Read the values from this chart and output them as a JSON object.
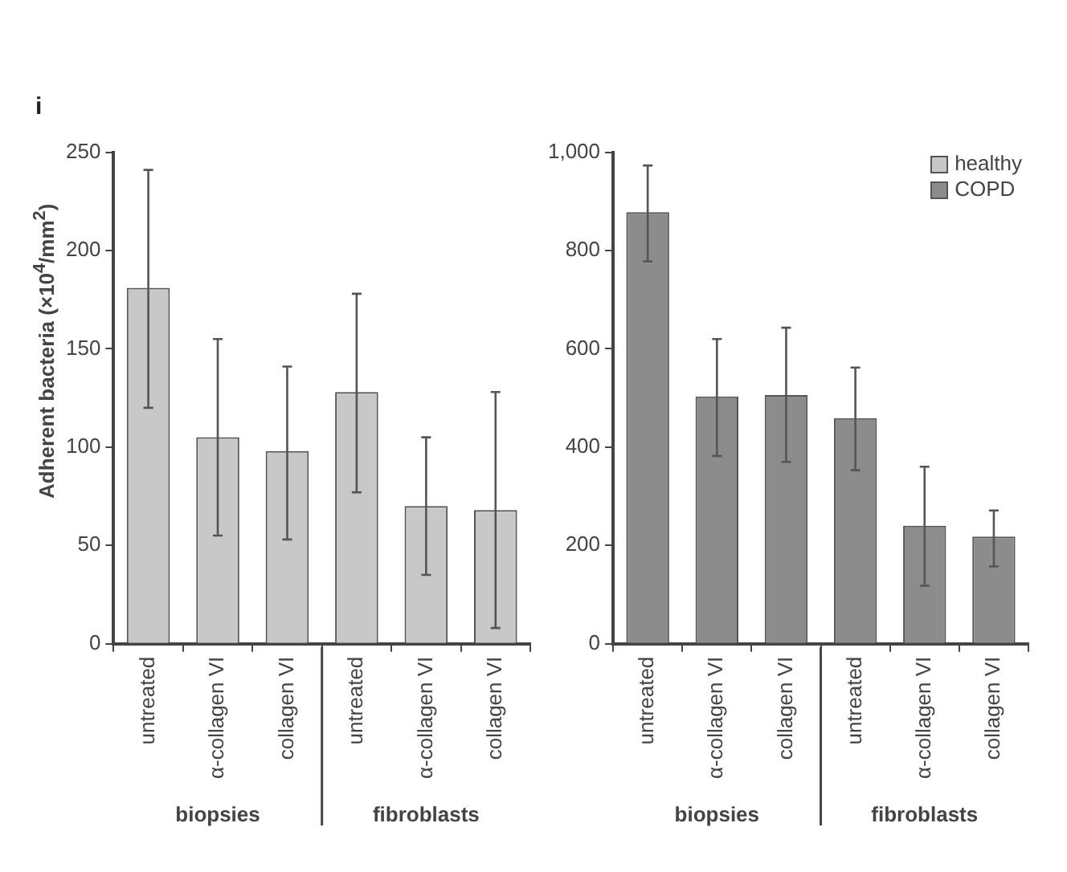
{
  "chart_data": [
    {
      "type": "bar",
      "ylabel": "Adherent bacteria (×10$^{4}$/mm$^{2}$)",
      "categories": [
        "untreated",
        "α-collagen VI",
        "collagen VI",
        "untreated",
        "α-collagen VI",
        "collagen VI"
      ],
      "series": [
        {
          "name": "healthy",
          "color": "#c8c8c8",
          "values": [
            181,
            105,
            98,
            128,
            70,
            68
          ],
          "errors": [
            [
              120,
              241
            ],
            [
              55,
              155
            ],
            [
              53,
              141
            ],
            [
              77,
              178
            ],
            [
              35,
              105
            ],
            [
              8,
              128
            ]
          ]
        }
      ],
      "ylim": [
        0,
        250
      ],
      "yticks": [
        0,
        50,
        100,
        150,
        200,
        250
      ],
      "grid": false,
      "legend": false,
      "annotations": [
        "i",
        "biopsies",
        "fibroblasts"
      ]
    },
    {
      "type": "bar",
      "categories": [
        "untreated",
        "α-collagen VI",
        "collagen VI",
        "untreated",
        "α-collagen VI",
        "collagen VI"
      ],
      "series": [
        {
          "name": "COPD",
          "color": "#8c8c8c",
          "values": [
            878,
            503,
            506,
            459,
            240,
            218
          ],
          "errors": [
            [
              778,
              973
            ],
            [
              382,
              620
            ],
            [
              370,
              643
            ],
            [
              353,
              562
            ],
            [
              118,
              360
            ],
            [
              157,
              271
            ]
          ]
        }
      ],
      "ylim": [
        0,
        1000
      ],
      "yticks": [
        0,
        200,
        400,
        600,
        800,
        {
          "value": 1000,
          "label": "1,000"
        }
      ],
      "grid": false,
      "legend": "top right",
      "annotations": [
        "biopsies",
        "fibroblasts"
      ]
    }
  ]
}
